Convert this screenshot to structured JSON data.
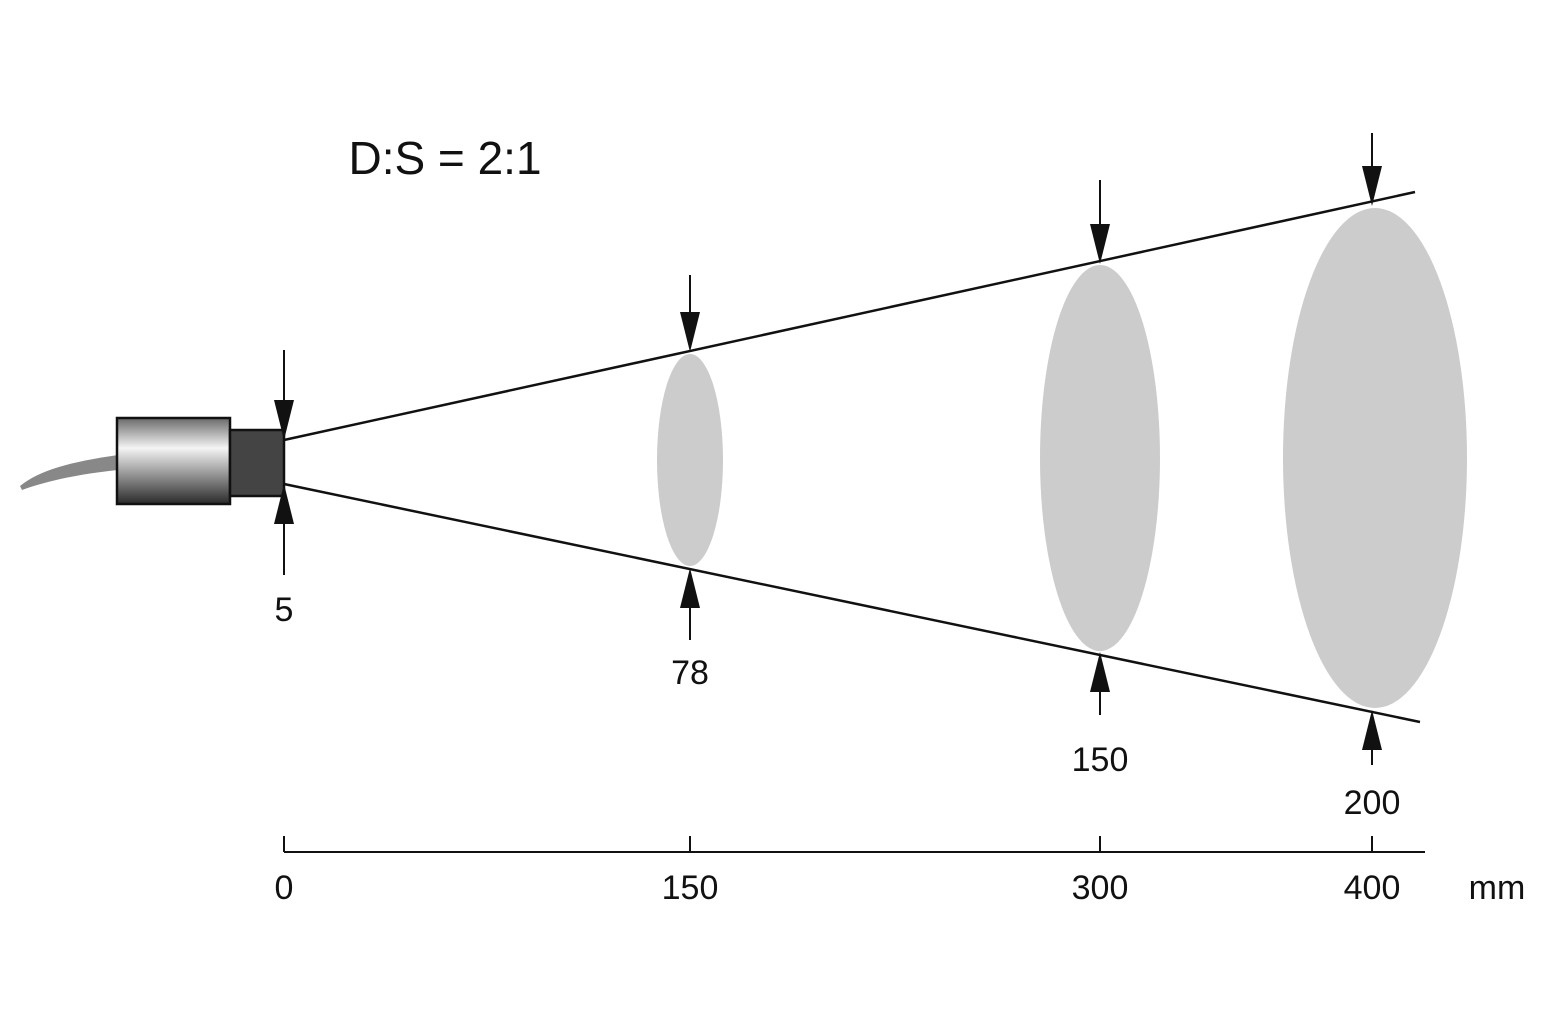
{
  "title": "D:S = 2:1",
  "spots": [
    {
      "distance": 0,
      "size": 5
    },
    {
      "distance": 150,
      "size": 78
    },
    {
      "distance": 300,
      "size": 150
    },
    {
      "distance": 400,
      "size": 200
    }
  ],
  "unit": "mm"
}
